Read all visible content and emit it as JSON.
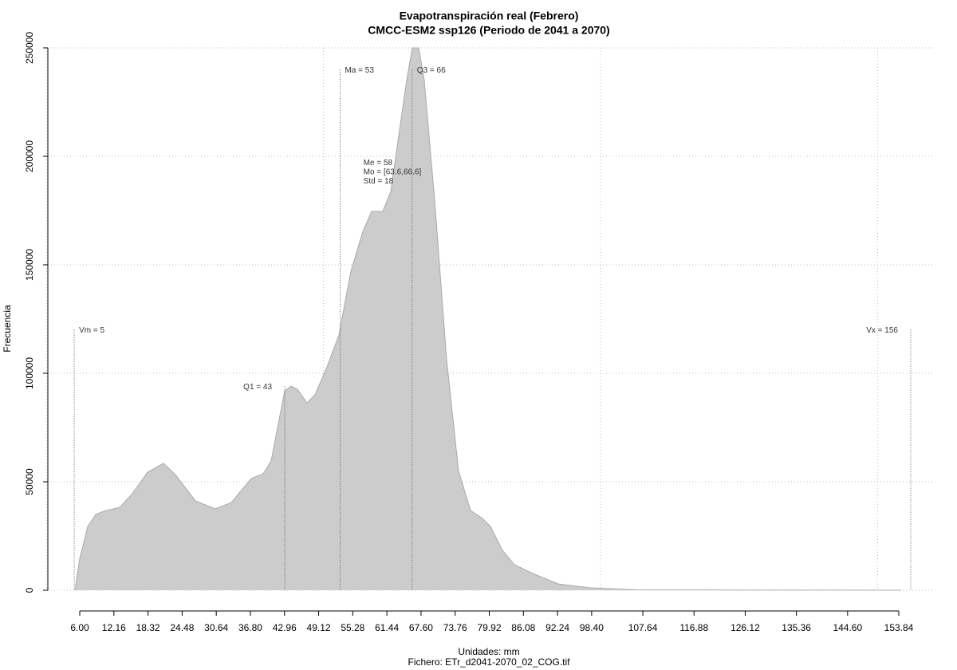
{
  "chart_data": {
    "type": "area",
    "title": "Evapotranspiración real (Febrero)",
    "subtitle": "CMCC-ESM2 ssp126 (Periodo de 2041 a 2070)",
    "xlabel": "Unidades: mm",
    "footer": "Fichero: ETr_d2041-2070_02_COG.tif",
    "ylabel": "Frecuencia",
    "color": "#cccccc",
    "x": [
      5.14,
      6,
      7.44,
      8.88,
      10.32,
      13.2,
      15.36,
      18.24,
      21.11,
      23.27,
      26.87,
      30.47,
      33.35,
      36.95,
      39.11,
      40.55,
      42.99,
      44.15,
      45.3,
      47.02,
      48.46,
      50.62,
      52.78,
      54.94,
      57.1,
      58.68,
      60.7,
      62.14,
      63.58,
      65.02,
      66.03,
      67.18,
      68.18,
      70.05,
      72.21,
      74.37,
      76.53,
      78.69,
      80.13,
      82.29,
      84.45,
      88.05,
      92.37,
      98.13,
      106.76,
      154.27
    ],
    "values": [
      0,
      14700,
      29400,
      34900,
      36400,
      38200,
      44100,
      54400,
      58500,
      53300,
      41200,
      37500,
      40400,
      51500,
      53700,
      59600,
      91900,
      94100,
      92600,
      86400,
      90100,
      102900,
      117600,
      147000,
      165400,
      174600,
      174600,
      183800,
      209600,
      235300,
      250000,
      250000,
      235300,
      180100,
      106600,
      55100,
      36800,
      33100,
      29400,
      18400,
      11800,
      7400,
      2900,
      1100,
      200,
      0
    ],
    "xlim": [
      0.24,
      160.03
    ],
    "ylim": [
      0,
      250000
    ],
    "yticks": [
      0,
      50000,
      100000,
      150000,
      200000,
      250000
    ],
    "xticks": [
      {
        "value": 6,
        "label": "6.00"
      },
      {
        "value": 12.16,
        "label": "12.16"
      },
      {
        "value": 18.32,
        "label": "18.32"
      },
      {
        "value": 24.48,
        "label": "24.48"
      },
      {
        "value": 30.64,
        "label": "30.64"
      },
      {
        "value": 36.8,
        "label": "36.80"
      },
      {
        "value": 42.96,
        "label": "42.96"
      },
      {
        "value": 49.12,
        "label": "49.12"
      },
      {
        "value": 55.28,
        "label": "55.28"
      },
      {
        "value": 61.44,
        "label": "61.44"
      },
      {
        "value": 67.6,
        "label": "67.60"
      },
      {
        "value": 73.76,
        "label": "73.76"
      },
      {
        "value": 79.92,
        "label": "79.92"
      },
      {
        "value": 86.08,
        "label": "86.08"
      },
      {
        "value": 92.24,
        "label": "92.24"
      },
      {
        "value": 98.4,
        "label": "98.40"
      },
      {
        "value": 107.64,
        "label": "107.64"
      },
      {
        "value": 116.88,
        "label": "116.88"
      },
      {
        "value": 126.12,
        "label": "126.12"
      },
      {
        "value": 135.36,
        "label": "135.36"
      },
      {
        "value": 144.6,
        "label": "144.60"
      },
      {
        "value": 153.84,
        "label": "153.84"
      }
    ],
    "xgrid": [
      0,
      50,
      100,
      150
    ],
    "grid": true,
    "annotations": [
      {
        "text": "Vm = 5",
        "x": 5,
        "y": 120000,
        "side": "right"
      },
      {
        "text": "Q1 = 43",
        "x": 43,
        "y": 94000,
        "side": "left"
      },
      {
        "text": "Ma = 53",
        "x": 53,
        "y": 240000,
        "side": "right"
      },
      {
        "text": "Q3 = 66",
        "x": 66,
        "y": 240000,
        "side": "right"
      },
      {
        "text": "Vx = 156",
        "x": 156,
        "y": 120000,
        "side": "left"
      }
    ],
    "stats": {
      "x": 57.2,
      "y": 197000,
      "lines": [
        "Me = 58",
        "Mo = [63.6,66.6]",
        "Std = 18"
      ]
    }
  }
}
